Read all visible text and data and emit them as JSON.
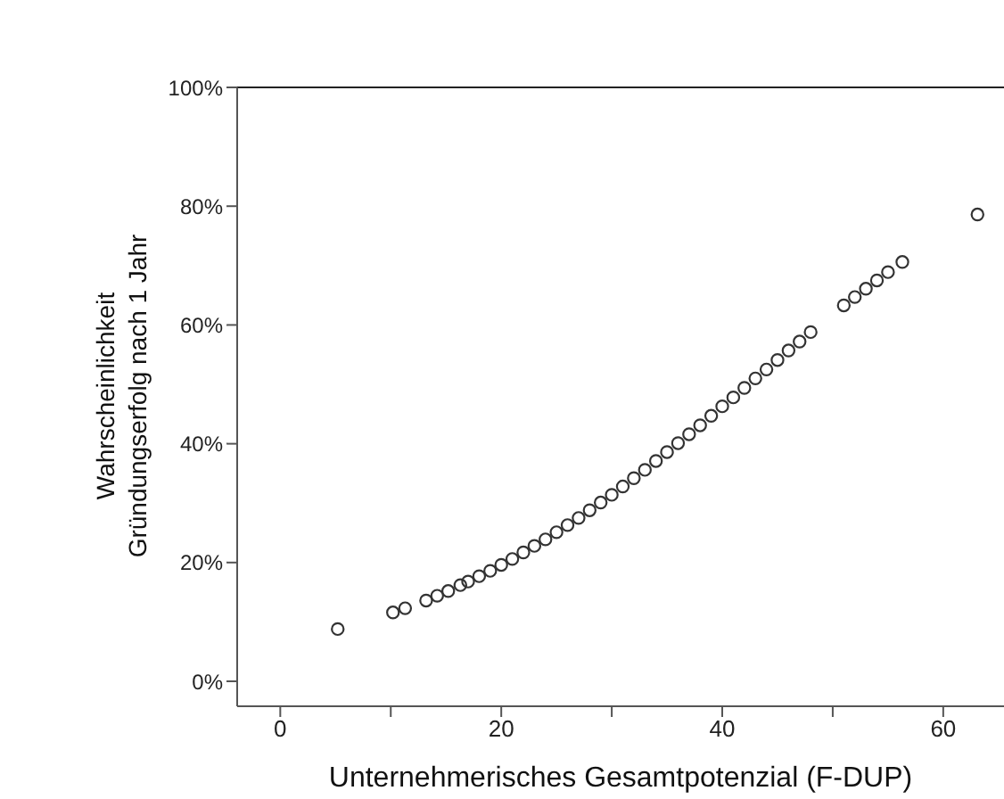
{
  "chart_data": {
    "type": "scatter",
    "xlabel": "Unternehmerisches Gesamtpotenzial (F-DUP)",
    "ylabel": "Wahrscheinlichkeit\nGründungserfolg nach 1 Jahr",
    "x": [
      5.2,
      10.2,
      11.3,
      13.2,
      14.2,
      15.2,
      16.3,
      17,
      18,
      19,
      20,
      21,
      22,
      23,
      24,
      25,
      26,
      27,
      28,
      29,
      30,
      31,
      32,
      33,
      34,
      35,
      36,
      37,
      38,
      39,
      40,
      41,
      42,
      43,
      44,
      45,
      46,
      47,
      48,
      51,
      52,
      53,
      54,
      55,
      56.3,
      63.1
    ],
    "values": [
      8.8,
      11.6,
      12.3,
      13.6,
      14.4,
      15.2,
      16.2,
      16.8,
      17.7,
      18.6,
      19.6,
      20.6,
      21.7,
      22.8,
      23.9,
      25.1,
      26.3,
      27.5,
      28.8,
      30.1,
      31.4,
      32.8,
      34.2,
      35.6,
      37.1,
      38.6,
      40.1,
      41.6,
      43.1,
      44.7,
      46.3,
      47.8,
      49.4,
      51.0,
      52.5,
      54.1,
      55.7,
      57.2,
      58.8,
      63.3,
      64.7,
      66.1,
      67.5,
      68.9,
      70.6,
      78.6
    ],
    "color": "#333333",
    "marker": "circle",
    "xlim": [
      -3.9,
      65.5
    ],
    "xticks": [
      0,
      {
        "value": 10,
        "label": null
      },
      20,
      {
        "value": 30,
        "label": null
      },
      40,
      {
        "value": 50,
        "label": null
      },
      60
    ],
    "ylim": [
      -4.2,
      100
    ],
    "yticks": [
      {
        "value": 0,
        "label": "0%"
      },
      {
        "value": 20,
        "label": "20%"
      },
      {
        "value": 40,
        "label": "40%"
      },
      {
        "value": 60,
        "label": "60%"
      },
      {
        "value": 80,
        "label": "80%"
      },
      {
        "value": 100,
        "label": "100%"
      }
    ],
    "grid": false
  }
}
